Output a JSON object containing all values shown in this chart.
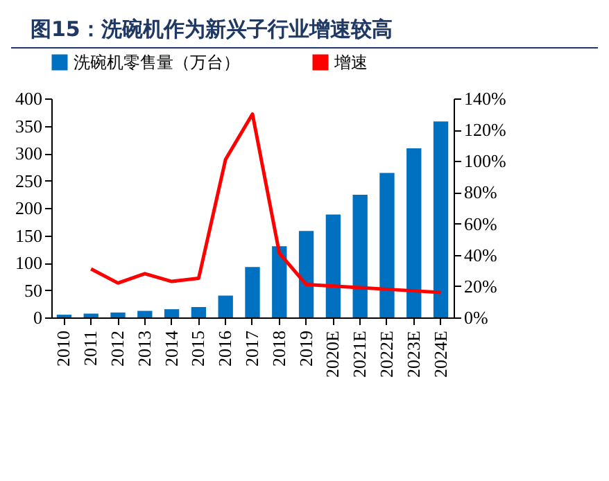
{
  "chart_data": {
    "type": "bar",
    "title": "图15：洗碗机作为新兴子行业增速较高",
    "categories": [
      "2010",
      "2011",
      "2012",
      "2013",
      "2014",
      "2015",
      "2016",
      "2017",
      "2018",
      "2019",
      "2020E",
      "2021E",
      "2022E",
      "2023E",
      "2024E"
    ],
    "series": [
      {
        "name": "洗碗机零售量（万台）",
        "color": "#0070c0",
        "values": [
          5,
          7,
          9,
          12,
          15,
          19,
          40,
          92,
          130,
          158,
          188,
          224,
          264,
          309,
          358
        ]
      },
      {
        "name": "增速",
        "type": "line",
        "axis": "y2",
        "color": "#ff0000",
        "values": [
          null,
          31,
          22,
          28,
          23,
          25,
          101,
          130,
          41,
          21,
          20,
          19,
          18,
          17,
          16
        ]
      }
    ],
    "ylim": [
      0,
      400
    ],
    "yticks": [
      0,
      50,
      100,
      150,
      200,
      250,
      300,
      350,
      400
    ],
    "y2lim": [
      0,
      140
    ],
    "y2ticks": [
      {
        "value": 0,
        "label": "0%"
      },
      {
        "value": 20,
        "label": "20%"
      },
      {
        "value": 40,
        "label": "40%"
      },
      {
        "value": 60,
        "label": "60%"
      },
      {
        "value": 80,
        "label": "80%"
      },
      {
        "value": 100,
        "label": "100%"
      },
      {
        "value": 120,
        "label": "120%"
      },
      {
        "value": 140,
        "label": "140%"
      }
    ],
    "grid": false,
    "legend": "top"
  }
}
